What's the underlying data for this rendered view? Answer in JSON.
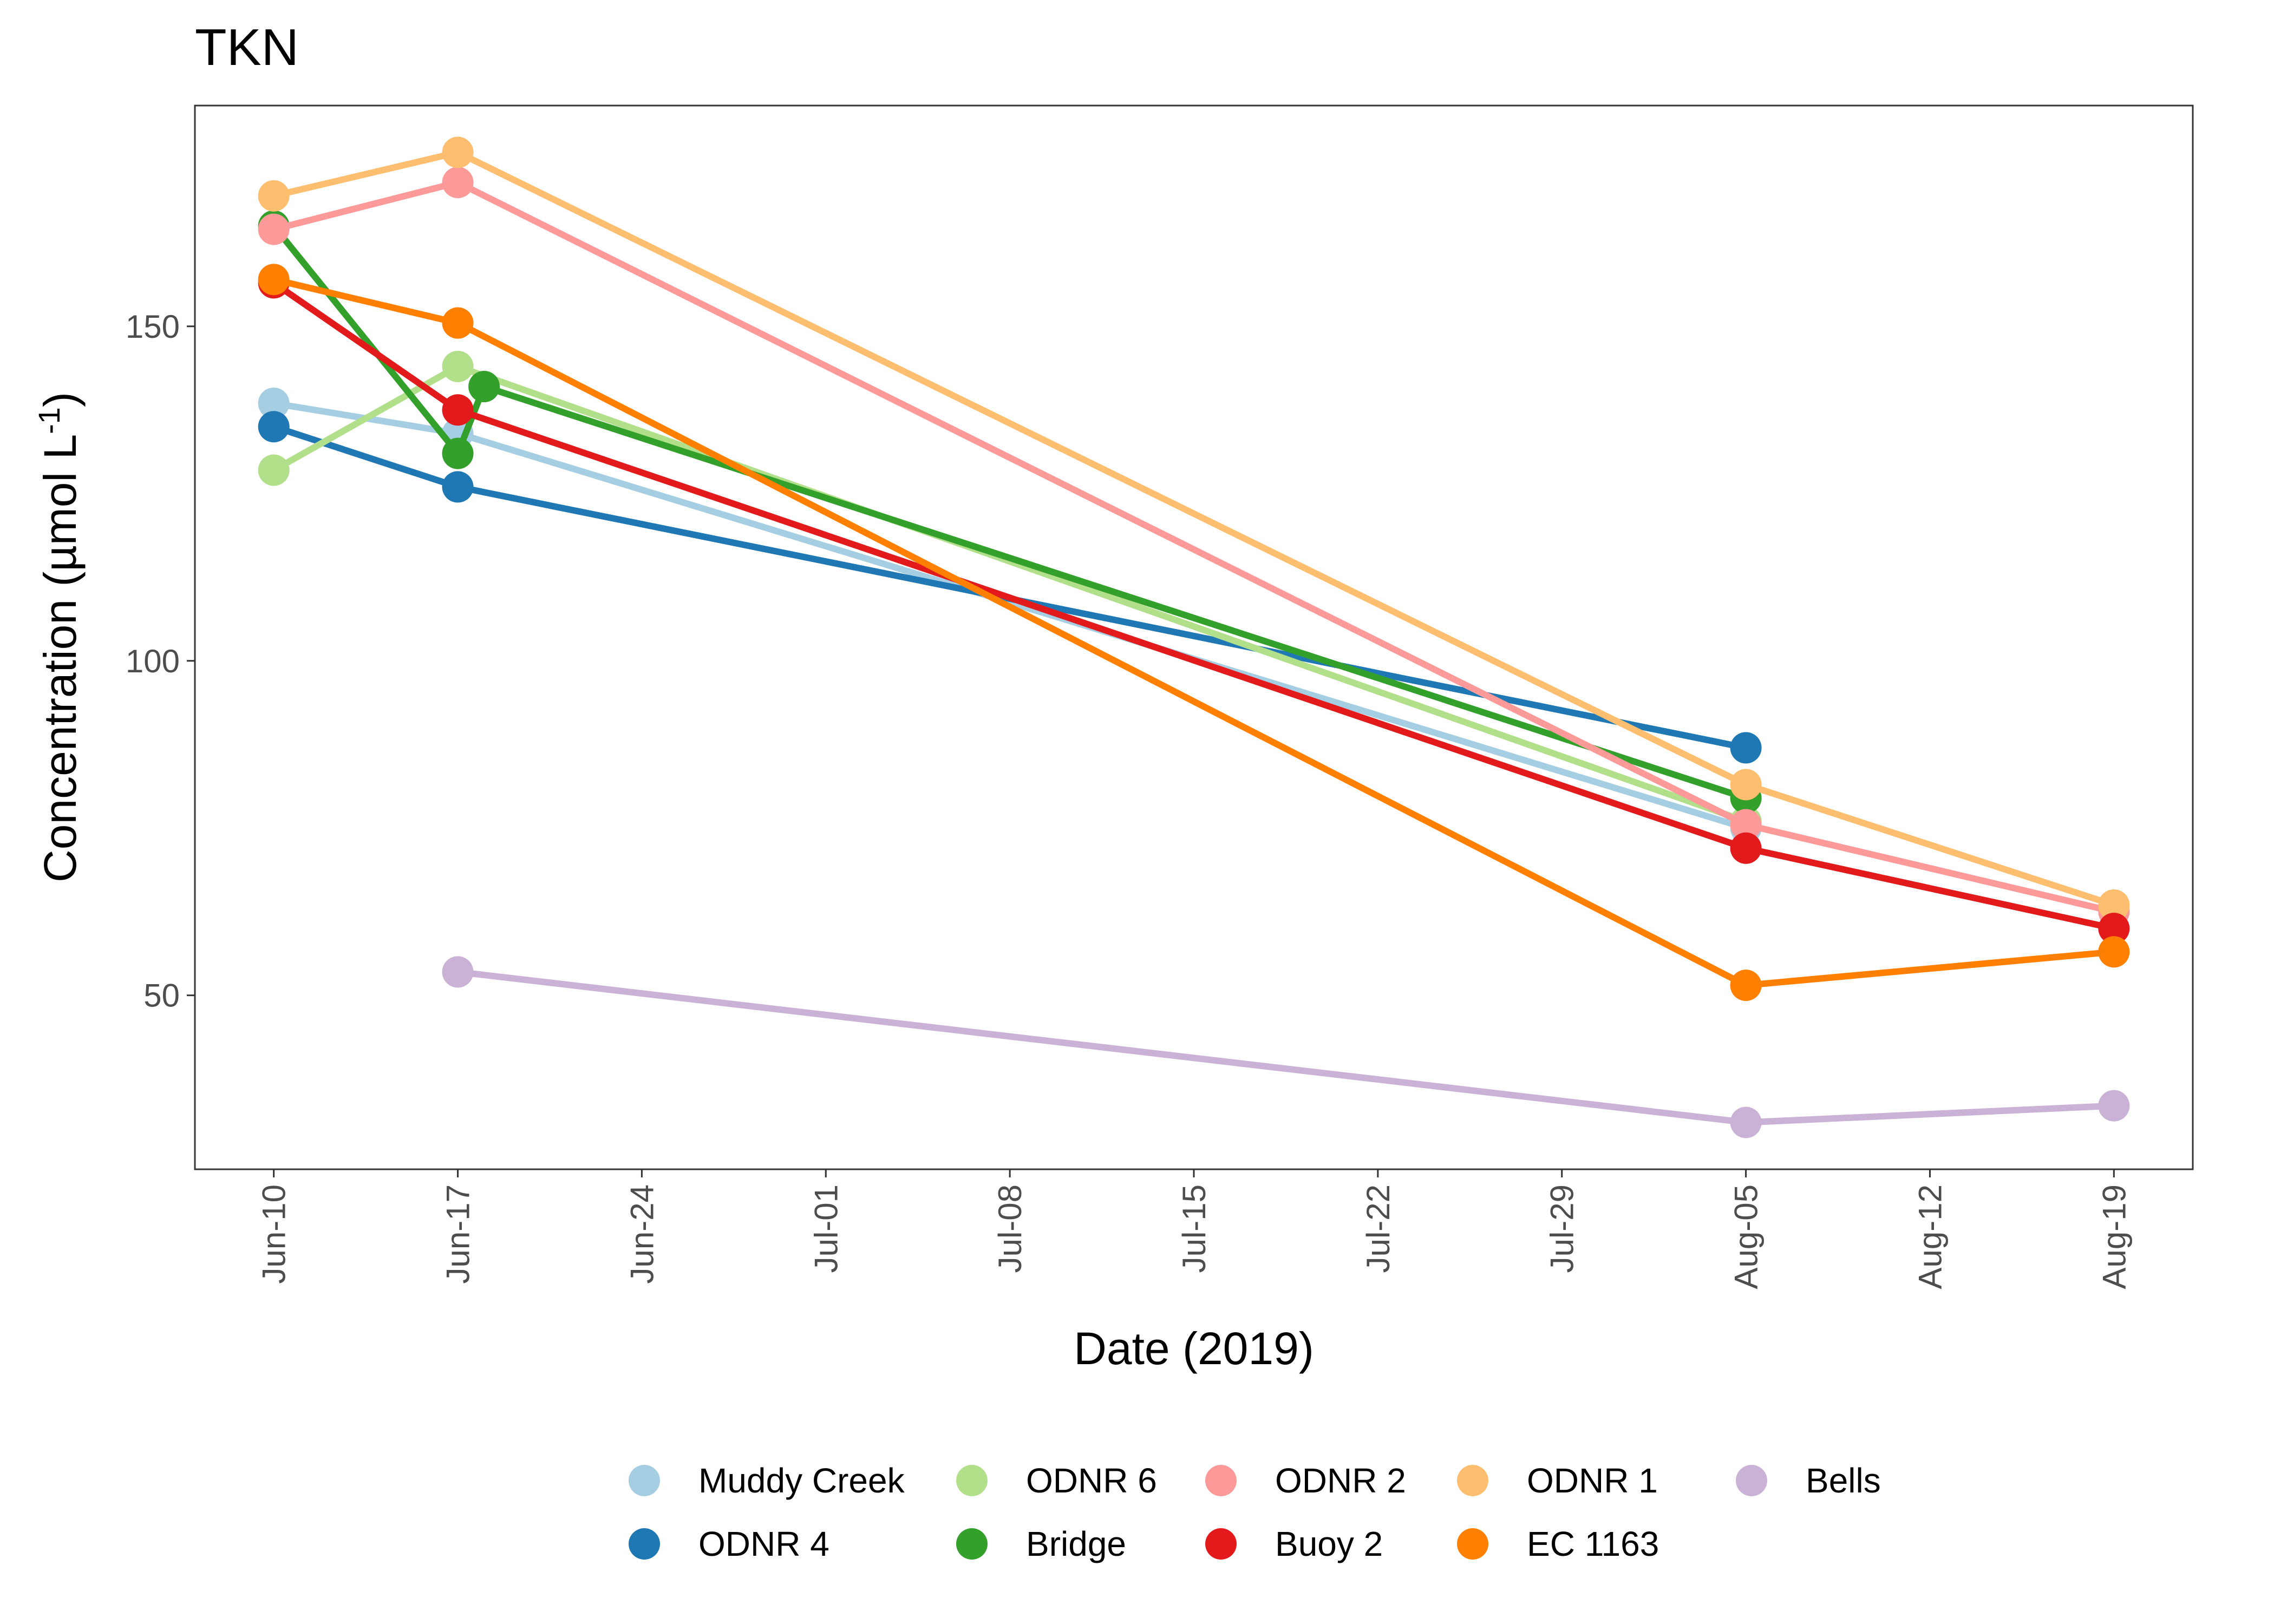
{
  "chart_data": {
    "type": "line",
    "title": "TKN",
    "xlabel": "Date (2019)",
    "ylabel": "Concentration (µmol L",
    "ylabel_superscript": "-1",
    "ylabel_close": ")",
    "x_axis": {
      "type": "date",
      "range": [
        "2019-06-07",
        "2019-08-22"
      ],
      "ticks": [
        {
          "date": "2019-06-10",
          "label": "Jun-10"
        },
        {
          "date": "2019-06-17",
          "label": "Jun-17"
        },
        {
          "date": "2019-06-24",
          "label": "Jun-24"
        },
        {
          "date": "2019-07-01",
          "label": "Jul-01"
        },
        {
          "date": "2019-07-08",
          "label": "Jul-08"
        },
        {
          "date": "2019-07-15",
          "label": "Jul-15"
        },
        {
          "date": "2019-07-22",
          "label": "Jul-22"
        },
        {
          "date": "2019-07-29",
          "label": "Jul-29"
        },
        {
          "date": "2019-08-05",
          "label": "Aug-05"
        },
        {
          "date": "2019-08-12",
          "label": "Aug-12"
        },
        {
          "date": "2019-08-19",
          "label": "Aug-19"
        }
      ]
    },
    "y_axis": {
      "range": [
        24,
        183
      ],
      "ticks": [
        50,
        100,
        150
      ]
    },
    "grid": false,
    "legend_position": "bottom",
    "series": [
      {
        "name": "Muddy Creek",
        "color": "#A6CEE3",
        "points": [
          [
            "2019-06-10",
            138.5
          ],
          [
            "2019-06-17",
            134.0
          ],
          [
            "2019-08-05",
            75.0
          ]
        ]
      },
      {
        "name": "ODNR 4",
        "color": "#1F78B4",
        "points": [
          [
            "2019-06-10",
            135.0
          ],
          [
            "2019-06-17",
            126.0
          ],
          [
            "2019-08-05",
            87.0
          ]
        ]
      },
      {
        "name": "ODNR 6",
        "color": "#B2DF8A",
        "points": [
          [
            "2019-06-10",
            128.5
          ],
          [
            "2019-06-17",
            144.0
          ],
          [
            "2019-08-05",
            76.0
          ]
        ]
      },
      {
        "name": "Bridge",
        "color": "#33A02C",
        "points": [
          [
            "2019-06-10",
            165.0
          ],
          [
            "2019-06-17",
            131.0
          ],
          [
            "2019-06-18",
            141.0
          ],
          [
            "2019-08-05",
            79.5
          ]
        ]
      },
      {
        "name": "ODNR 2",
        "color": "#FB9A99",
        "points": [
          [
            "2019-06-10",
            164.5
          ],
          [
            "2019-06-17",
            171.5
          ],
          [
            "2019-08-05",
            75.5
          ],
          [
            "2019-08-19",
            62.5
          ]
        ]
      },
      {
        "name": "Buoy 2",
        "color": "#E31A1C",
        "points": [
          [
            "2019-06-10",
            156.5
          ],
          [
            "2019-06-17",
            137.5
          ],
          [
            "2019-08-05",
            72.0
          ],
          [
            "2019-08-19",
            60.0
          ]
        ]
      },
      {
        "name": "ODNR 1",
        "color": "#FDBF6F",
        "points": [
          [
            "2019-06-10",
            169.5
          ],
          [
            "2019-06-17",
            176.0
          ],
          [
            "2019-08-05",
            81.5
          ],
          [
            "2019-08-19",
            63.5
          ]
        ]
      },
      {
        "name": "EC 1163",
        "color": "#FF7F00",
        "points": [
          [
            "2019-06-10",
            157.0
          ],
          [
            "2019-06-17",
            150.5
          ],
          [
            "2019-08-05",
            51.5
          ],
          [
            "2019-08-19",
            56.5
          ]
        ]
      },
      {
        "name": "Bells",
        "color": "#CAB2D6",
        "points": [
          [
            "2019-06-17",
            53.5
          ],
          [
            "2019-08-05",
            31.0
          ],
          [
            "2019-08-19",
            33.5
          ]
        ]
      }
    ],
    "legend_order": [
      "Muddy Creek",
      "ODNR 4",
      "ODNR 6",
      "Bridge",
      "ODNR 2",
      "Buoy 2",
      "ODNR 1",
      "EC 1163",
      "Bells"
    ],
    "draw_order": [
      "Muddy Creek",
      "ODNR 4",
      "ODNR 6",
      "Bridge",
      "ODNR 2",
      "ODNR 1",
      "Buoy 2",
      "EC 1163",
      "Bells"
    ]
  }
}
